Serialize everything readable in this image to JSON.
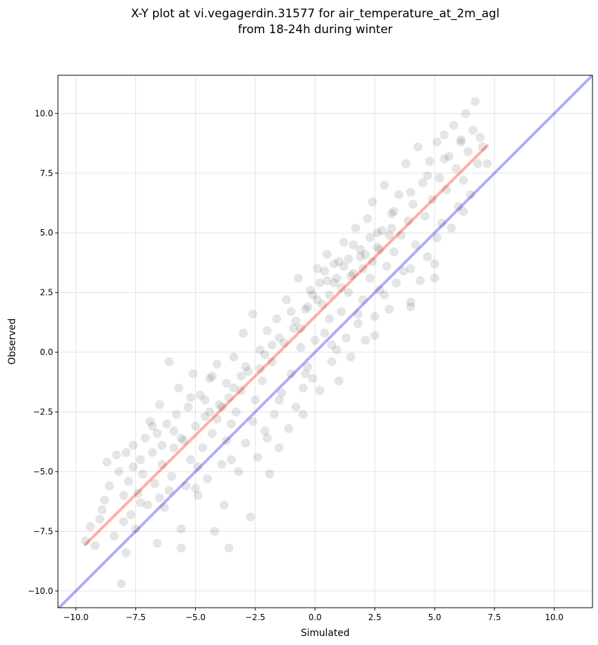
{
  "chart_data": {
    "type": "scatter",
    "title": [
      "X-Y plot at vi.vegagerdin.31577 for air_temperature_at_2m_agl",
      "from 18-24h during winter"
    ],
    "xlabel": "Simulated",
    "ylabel": "Observed",
    "xlim": [
      -10.75,
      11.6
    ],
    "ylim": [
      -10.7,
      11.6
    ],
    "xticks": [
      -10.0,
      -7.5,
      -5.0,
      -2.5,
      0.0,
      2.5,
      5.0,
      7.5,
      10.0
    ],
    "yticks": [
      -10.0,
      -7.5,
      -5.0,
      -2.5,
      0.0,
      2.5,
      5.0,
      7.5,
      10.0
    ],
    "xtick_labels": [
      "−10.0",
      "−7.5",
      "−5.0",
      "−2.5",
      "0.0",
      "2.5",
      "5.0",
      "7.5",
      "10.0"
    ],
    "ytick_labels": [
      "−10.0",
      "−7.5",
      "−5.0",
      "−2.5",
      "0.0",
      "2.5",
      "5.0",
      "7.5",
      "10.0"
    ],
    "grid": true,
    "point_color": "#000000",
    "point_opacity": 0.1,
    "points": [
      [
        -9.6,
        -7.9
      ],
      [
        -9.4,
        -7.3
      ],
      [
        -9.2,
        -8.1
      ],
      [
        -9.0,
        -7.0
      ],
      [
        -8.9,
        -6.6
      ],
      [
        -8.8,
        -6.2
      ],
      [
        -8.6,
        -5.6
      ],
      [
        -8.4,
        -7.7
      ],
      [
        -8.3,
        -4.3
      ],
      [
        -8.2,
        -5.0
      ],
      [
        -8.1,
        -9.7
      ],
      [
        -8.0,
        -6.0
      ],
      [
        -7.9,
        -4.2
      ],
      [
        -7.9,
        -8.4
      ],
      [
        -7.8,
        -5.4
      ],
      [
        -7.7,
        -6.8
      ],
      [
        -7.6,
        -4.8
      ],
      [
        -7.5,
        -7.4
      ],
      [
        -7.4,
        -5.9
      ],
      [
        -7.3,
        -4.5
      ],
      [
        -7.2,
        -5.1
      ],
      [
        -7.1,
        -3.6
      ],
      [
        -7.0,
        -6.4
      ],
      [
        -6.9,
        -2.9
      ],
      [
        -6.8,
        -4.2
      ],
      [
        -6.7,
        -5.5
      ],
      [
        -6.6,
        -3.4
      ],
      [
        -6.6,
        -8.0
      ],
      [
        -6.5,
        -2.2
      ],
      [
        -6.4,
        -4.7
      ],
      [
        -6.3,
        -6.5
      ],
      [
        -6.2,
        -3.0
      ],
      [
        -6.1,
        -0.4
      ],
      [
        -6.0,
        -5.2
      ],
      [
        -5.9,
        -4.0
      ],
      [
        -5.8,
        -2.6
      ],
      [
        -5.7,
        -1.5
      ],
      [
        -5.6,
        -7.4
      ],
      [
        -5.6,
        -8.2
      ],
      [
        -5.5,
        -3.7
      ],
      [
        -5.4,
        -5.6
      ],
      [
        -5.3,
        -2.3
      ],
      [
        -5.2,
        -4.5
      ],
      [
        -5.1,
        -0.9
      ],
      [
        -5.0,
        -3.1
      ],
      [
        -4.9,
        -6.0
      ],
      [
        -4.8,
        -1.8
      ],
      [
        -4.7,
        -4.0
      ],
      [
        -4.6,
        -2.7
      ],
      [
        -4.5,
        -5.3
      ],
      [
        -4.4,
        -1.1
      ],
      [
        -4.3,
        -3.4
      ],
      [
        -4.2,
        -7.5
      ],
      [
        -4.1,
        -0.5
      ],
      [
        -4.0,
        -2.2
      ],
      [
        -3.9,
        -4.7
      ],
      [
        -3.8,
        -6.4
      ],
      [
        -3.7,
        -1.3
      ],
      [
        -3.6,
        -8.2
      ],
      [
        -3.5,
        -3.0
      ],
      [
        -3.4,
        -0.2
      ],
      [
        -3.3,
        -2.5
      ],
      [
        -3.2,
        -5.0
      ],
      [
        -3.1,
        -1.6
      ],
      [
        -3.0,
        0.8
      ],
      [
        -2.9,
        -3.8
      ],
      [
        -2.8,
        -0.8
      ],
      [
        -2.7,
        -6.9
      ],
      [
        -2.6,
        1.6
      ],
      [
        -2.5,
        -2.0
      ],
      [
        -2.4,
        -4.4
      ],
      [
        -2.3,
        0.1
      ],
      [
        -2.2,
        -1.2
      ],
      [
        -2.1,
        -3.3
      ],
      [
        -2.0,
        0.9
      ],
      [
        -1.9,
        -5.1
      ],
      [
        -1.8,
        -0.4
      ],
      [
        -1.7,
        -2.6
      ],
      [
        -1.6,
        1.4
      ],
      [
        -1.5,
        -4.0
      ],
      [
        -1.4,
        -1.7
      ],
      [
        -1.3,
        0.4
      ],
      [
        -1.2,
        2.2
      ],
      [
        -1.1,
        -3.2
      ],
      [
        -1.0,
        -0.9
      ],
      [
        -0.9,
        1.0
      ],
      [
        -0.8,
        -2.3
      ],
      [
        -0.7,
        3.1
      ],
      [
        -0.6,
        0.2
      ],
      [
        -0.5,
        -1.5
      ],
      [
        -0.4,
        1.8
      ],
      [
        -0.3,
        -0.6
      ],
      [
        -0.2,
        2.6
      ],
      [
        -0.1,
        -1.1
      ],
      [
        0.0,
        0.5
      ],
      [
        0.1,
        3.5
      ],
      [
        0.2,
        -1.6
      ],
      [
        0.3,
        2.0
      ],
      [
        0.4,
        0.8
      ],
      [
        0.5,
        4.1
      ],
      [
        0.6,
        1.4
      ],
      [
        0.7,
        -0.4
      ],
      [
        0.8,
        2.9
      ],
      [
        0.9,
        0.1
      ],
      [
        1.0,
        3.8
      ],
      [
        1.1,
        1.7
      ],
      [
        1.2,
        4.6
      ],
      [
        1.3,
        0.6
      ],
      [
        1.4,
        2.5
      ],
      [
        1.5,
        -0.2
      ],
      [
        1.6,
        3.3
      ],
      [
        1.7,
        5.2
      ],
      [
        1.8,
        1.2
      ],
      [
        1.9,
        4.0
      ],
      [
        2.0,
        2.2
      ],
      [
        2.1,
        0.5
      ],
      [
        2.2,
        5.6
      ],
      [
        2.3,
        3.1
      ],
      [
        2.4,
        6.3
      ],
      [
        2.5,
        1.5
      ],
      [
        2.6,
        4.4
      ],
      [
        2.7,
        2.6
      ],
      [
        2.8,
        5.1
      ],
      [
        2.9,
        7.0
      ],
      [
        3.0,
        3.6
      ],
      [
        3.1,
        1.8
      ],
      [
        3.2,
        5.8
      ],
      [
        3.3,
        4.2
      ],
      [
        3.4,
        2.9
      ],
      [
        3.5,
        6.6
      ],
      [
        3.6,
        4.9
      ],
      [
        3.7,
        3.4
      ],
      [
        3.8,
        7.9
      ],
      [
        3.9,
        5.5
      ],
      [
        4.0,
        2.1
      ],
      [
        4.1,
        6.2
      ],
      [
        4.2,
        4.5
      ],
      [
        4.3,
        8.6
      ],
      [
        4.4,
        3.0
      ],
      [
        4.5,
        7.1
      ],
      [
        4.6,
        5.7
      ],
      [
        4.7,
        4.0
      ],
      [
        4.8,
        8.0
      ],
      [
        4.9,
        6.4
      ],
      [
        5.0,
        3.7
      ],
      [
        5.1,
        8.8
      ],
      [
        5.2,
        7.3
      ],
      [
        5.3,
        5.4
      ],
      [
        5.4,
        9.1
      ],
      [
        5.5,
        6.8
      ],
      [
        5.6,
        8.2
      ],
      [
        5.7,
        5.2
      ],
      [
        5.8,
        9.5
      ],
      [
        5.9,
        7.7
      ],
      [
        6.0,
        6.1
      ],
      [
        6.1,
        8.9
      ],
      [
        6.2,
        7.2
      ],
      [
        6.3,
        10.0
      ],
      [
        6.4,
        8.4
      ],
      [
        6.5,
        6.6
      ],
      [
        6.6,
        9.3
      ],
      [
        6.7,
        10.5
      ],
      [
        6.8,
        7.9
      ],
      [
        6.9,
        9.0
      ],
      [
        7.0,
        8.6
      ],
      [
        7.2,
        7.9
      ],
      [
        -8.7,
        -4.6
      ],
      [
        -7.6,
        -3.9
      ],
      [
        -6.8,
        -3.1
      ],
      [
        -5.9,
        -3.3
      ],
      [
        -5.2,
        -1.9
      ],
      [
        -4.3,
        -1.0
      ],
      [
        -3.6,
        -1.9
      ],
      [
        -2.9,
        -0.6
      ],
      [
        -2.1,
        -0.1
      ],
      [
        -1.5,
        0.6
      ],
      [
        -0.8,
        1.3
      ],
      [
        -0.1,
        2.4
      ],
      [
        0.5,
        3.0
      ],
      [
        1.2,
        3.6
      ],
      [
        1.9,
        4.3
      ],
      [
        2.6,
        5.0
      ],
      [
        3.3,
        5.9
      ],
      [
        4.0,
        6.7
      ],
      [
        4.7,
        7.4
      ],
      [
        5.4,
        8.1
      ],
      [
        6.1,
        8.8
      ],
      [
        -7.3,
        -6.3
      ],
      [
        -6.1,
        -5.8
      ],
      [
        -4.9,
        -4.8
      ],
      [
        -3.7,
        -3.7
      ],
      [
        -2.6,
        -2.9
      ],
      [
        -1.5,
        -2.0
      ],
      [
        -0.4,
        -0.9
      ],
      [
        0.7,
        0.3
      ],
      [
        1.8,
        1.6
      ],
      [
        2.9,
        2.4
      ],
      [
        4.0,
        3.5
      ],
      [
        5.1,
        4.8
      ],
      [
        6.2,
        5.9
      ],
      [
        -8.0,
        -7.1
      ],
      [
        -6.5,
        -6.1
      ],
      [
        -5.0,
        -5.7
      ],
      [
        -3.5,
        -4.5
      ],
      [
        -2.0,
        -3.6
      ],
      [
        -0.5,
        -2.6
      ],
      [
        1.0,
        -1.2
      ],
      [
        2.5,
        0.7
      ],
      [
        4.0,
        1.9
      ],
      [
        5.0,
        3.1
      ],
      [
        -4.6,
        -2.0
      ],
      [
        -4.1,
        -2.8
      ],
      [
        -3.9,
        -2.3
      ],
      [
        -3.4,
        -1.5
      ],
      [
        -1.0,
        1.7
      ],
      [
        0.2,
        2.9
      ],
      [
        0.6,
        2.4
      ],
      [
        0.9,
        3.1
      ],
      [
        1.4,
        3.9
      ],
      [
        1.6,
        4.5
      ],
      [
        2.1,
        4.1
      ],
      [
        2.3,
        4.8
      ],
      [
        2.7,
        4.3
      ],
      [
        3.1,
        4.9
      ],
      [
        3.2,
        5.2
      ],
      [
        0.1,
        2.2
      ],
      [
        0.4,
        3.4
      ],
      [
        0.8,
        3.7
      ],
      [
        1.1,
        2.7
      ],
      [
        1.5,
        3.2
      ],
      [
        2.0,
        3.5
      ],
      [
        2.4,
        3.8
      ],
      [
        -0.6,
        1.0
      ],
      [
        -0.3,
        1.9
      ],
      [
        -1.8,
        0.3
      ],
      [
        -2.3,
        -0.7
      ],
      [
        -3.1,
        -1.0
      ],
      [
        -4.4,
        -2.5
      ],
      [
        -5.6,
        -3.6
      ],
      [
        -6.4,
        -3.9
      ]
    ],
    "lines": [
      {
        "color": "#ff0000",
        "opacity": 0.32,
        "points": [
          [
            -9.6,
            -8.05
          ],
          [
            7.2,
            8.65
          ]
        ]
      },
      {
        "color": "#0000ff",
        "opacity": 0.32,
        "points": [
          [
            -10.75,
            -10.75
          ],
          [
            11.6,
            11.6
          ]
        ]
      }
    ]
  }
}
